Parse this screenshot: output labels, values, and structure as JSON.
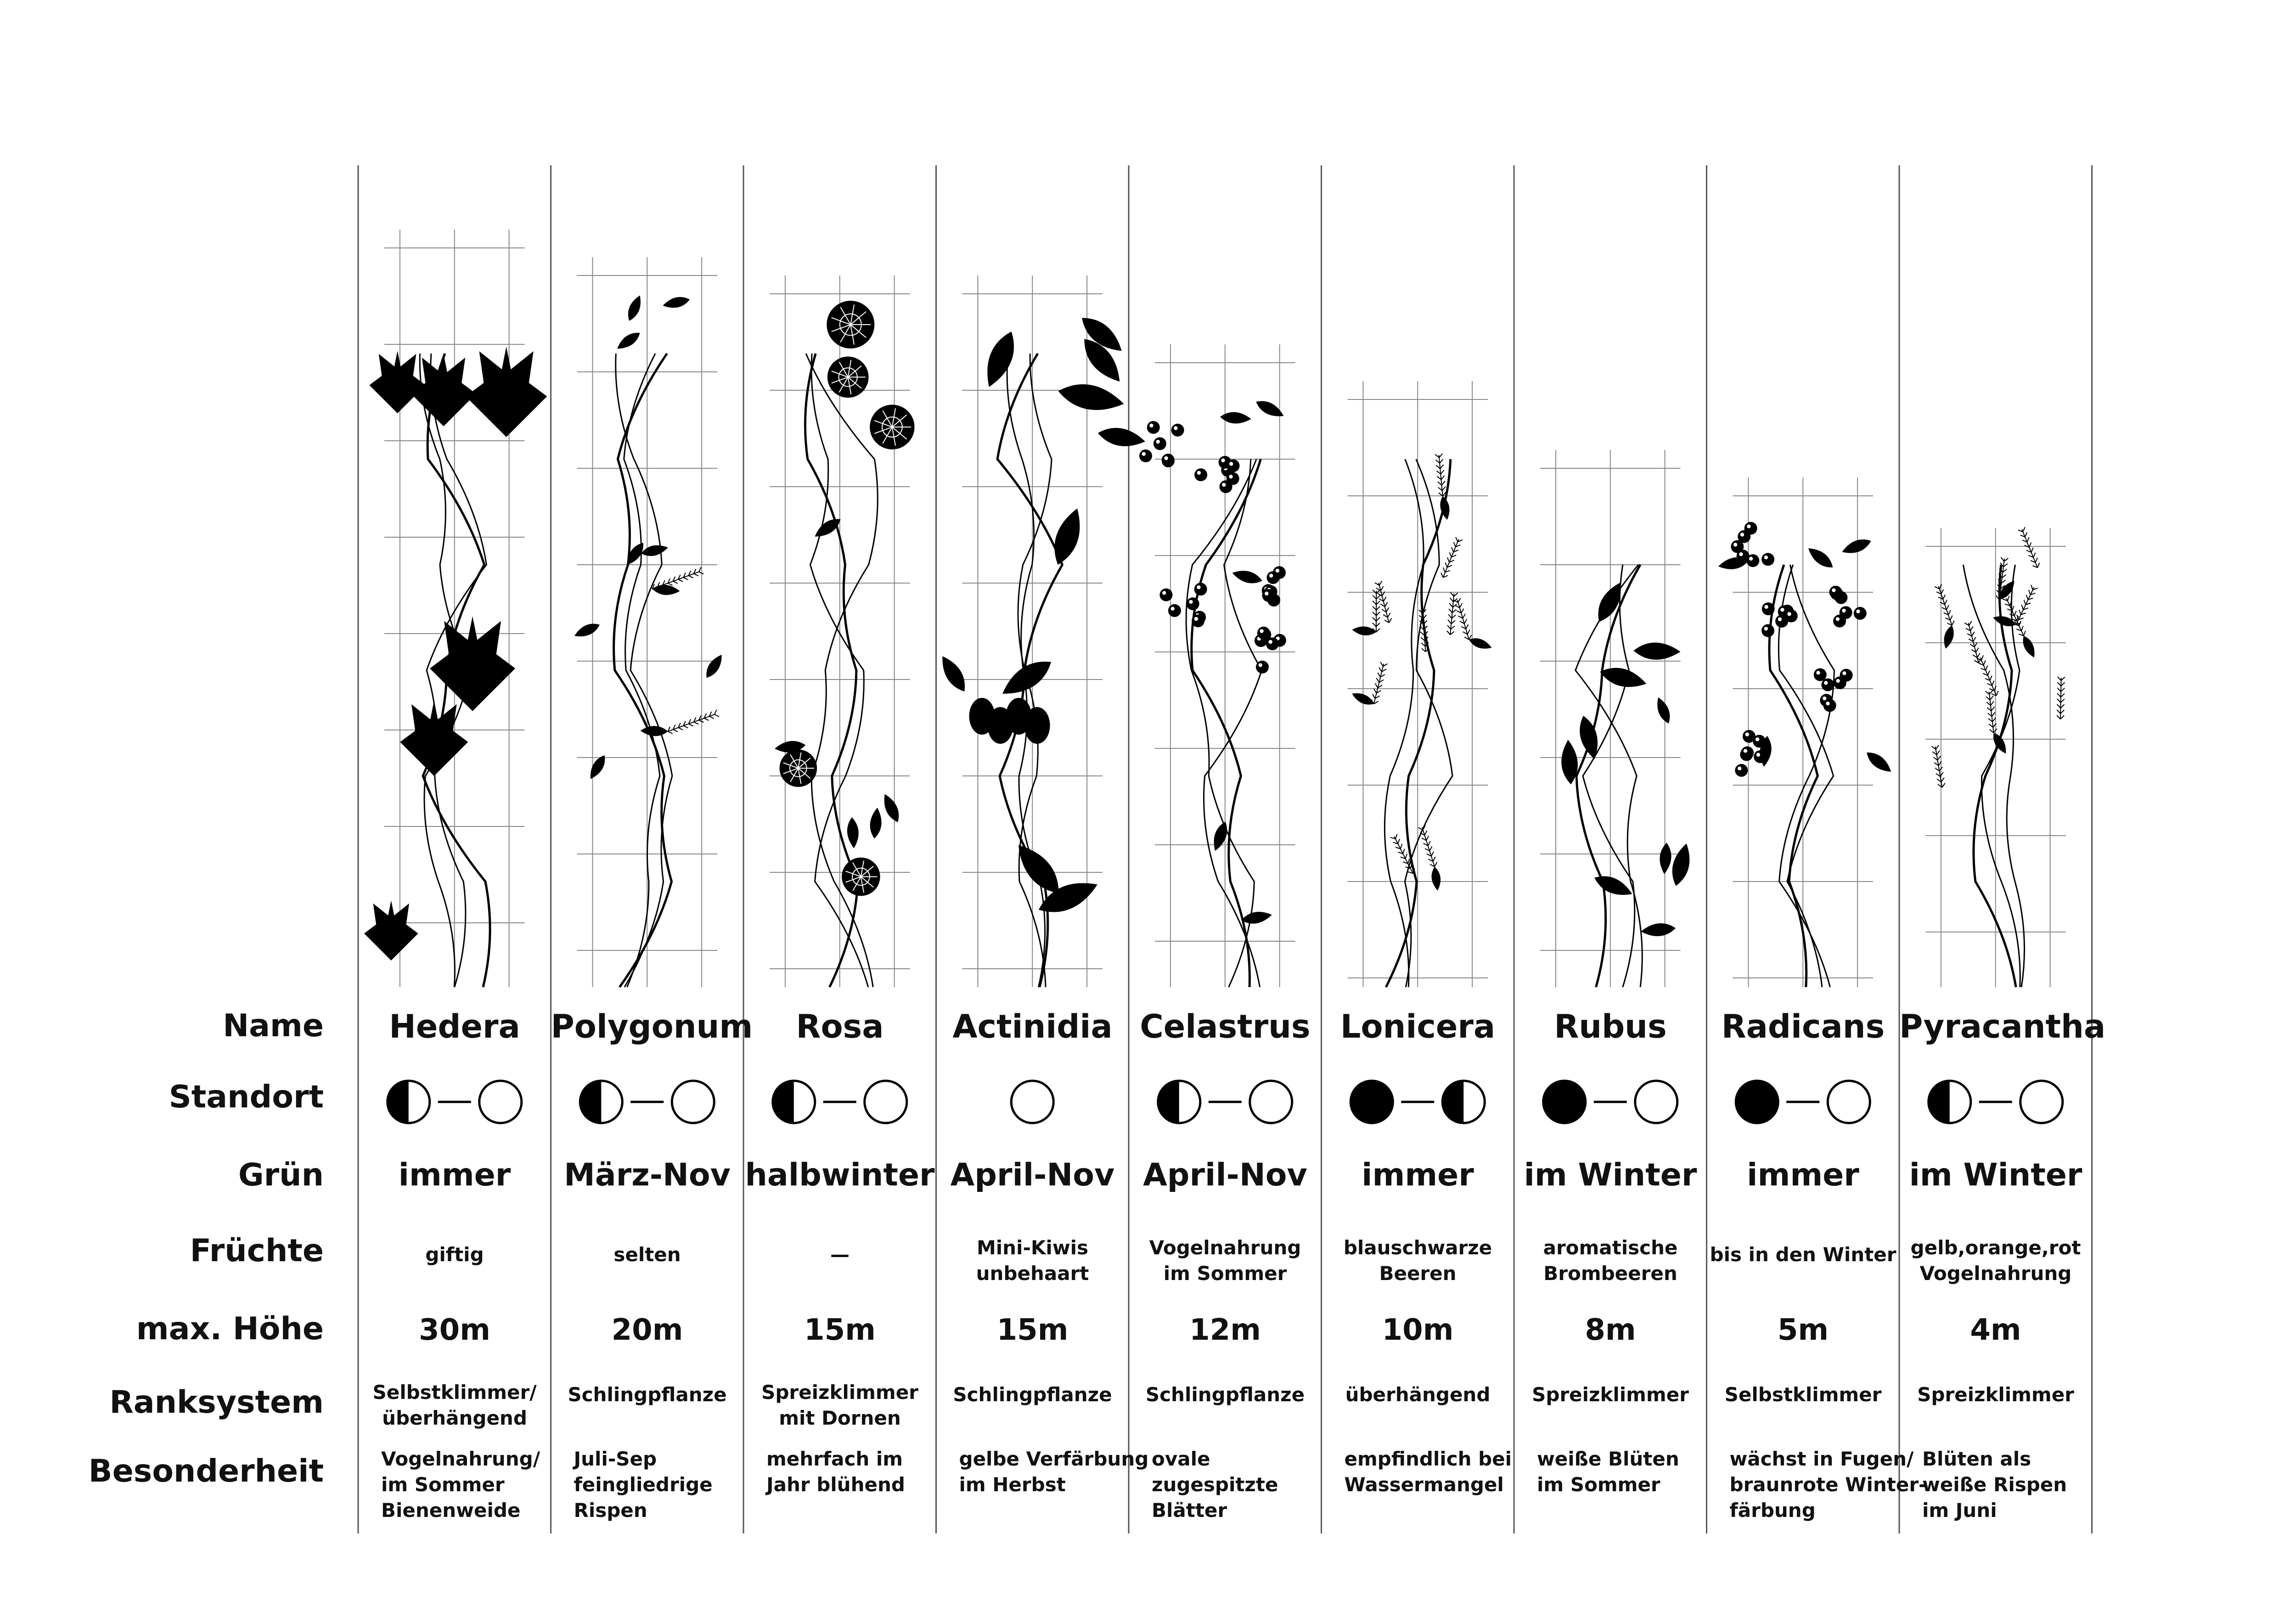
{
  "row_labels": {
    "name": "Name",
    "standort": "Standort",
    "gruen": "Grün",
    "fruechte": "Früchte",
    "hoehe": "max. Höhe",
    "ranksystem": "Ranksystem",
    "besonderheit": "Besonderheit"
  },
  "plants": [
    {
      "name": "Hedera",
      "standort": [
        "half",
        "empty"
      ],
      "gruen": "immer",
      "fruechte": [
        "giftig"
      ],
      "hoehe": "30m",
      "ranksystem": [
        "Selbstklimmer/",
        "überhängend"
      ],
      "besonderheit": [
        "Vogelnahrung/",
        "im Sommer",
        "Bienenweide"
      ],
      "illustration": "ivy"
    },
    {
      "name": "Polygonum",
      "standort": [
        "half",
        "empty"
      ],
      "gruen": "März-Nov",
      "fruechte": [
        "selten"
      ],
      "hoehe": "20m",
      "ranksystem": [
        "Schlingpflanze"
      ],
      "besonderheit": [
        "Juli-Sep",
        "feingliedrige",
        "Rispen"
      ],
      "illustration": "polygonum"
    },
    {
      "name": "Rosa",
      "standort": [
        "half",
        "empty"
      ],
      "gruen": "halbwinter",
      "fruechte": [
        "—"
      ],
      "hoehe": "15m",
      "ranksystem": [
        "Spreizklimmer",
        "mit Dornen"
      ],
      "besonderheit": [
        "mehrfach im",
        "Jahr blühend"
      ],
      "illustration": "rose"
    },
    {
      "name": "Actinidia",
      "standort": [
        "empty"
      ],
      "gruen": "April-Nov",
      "fruechte": [
        "Mini-Kiwis",
        "unbehaart"
      ],
      "hoehe": "15m",
      "ranksystem": [
        "Schlingpflanze"
      ],
      "besonderheit": [
        "gelbe Verfärbung",
        "im Herbst"
      ],
      "illustration": "kiwi"
    },
    {
      "name": "Celastrus",
      "standort": [
        "half",
        "empty"
      ],
      "gruen": "April-Nov",
      "fruechte": [
        "Vogelnahrung",
        "im Sommer"
      ],
      "hoehe": "12m",
      "ranksystem": [
        "Schlingpflanze"
      ],
      "besonderheit": [
        "ovale",
        "zugespitzte",
        "Blätter"
      ],
      "illustration": "celastrus"
    },
    {
      "name": "Lonicera",
      "standort": [
        "full",
        "half"
      ],
      "gruen": "immer",
      "fruechte": [
        "blauschwarze",
        "Beeren"
      ],
      "hoehe": "10m",
      "ranksystem": [
        "überhängend"
      ],
      "besonderheit": [
        "empfindlich bei",
        "Wassermangel"
      ],
      "illustration": "lonicera"
    },
    {
      "name": "Rubus",
      "standort": [
        "full",
        "empty"
      ],
      "gruen": "im Winter",
      "fruechte": [
        "aromatische",
        "Brombeeren"
      ],
      "hoehe": "8m",
      "ranksystem": [
        "Spreizklimmer"
      ],
      "besonderheit": [
        "weiße Blüten",
        "im Sommer"
      ],
      "illustration": "rubus"
    },
    {
      "name": "Radicans",
      "standort": [
        "full",
        "empty"
      ],
      "gruen": "immer",
      "fruechte": [
        "bis in den Winter"
      ],
      "hoehe": "5m",
      "ranksystem": [
        "Selbstklimmer"
      ],
      "besonderheit": [
        "wächst in Fugen/",
        "braunrote Winter-",
        "färbung"
      ],
      "illustration": "radicans"
    },
    {
      "name": "Pyracantha",
      "standort": [
        "half",
        "empty"
      ],
      "gruen": "im Winter",
      "fruechte": [
        "gelb,orange,rot",
        "Vogelnahrung"
      ],
      "hoehe": "4m",
      "ranksystem": [
        "Spreizklimmer"
      ],
      "besonderheit": [
        "Blüten als",
        "weiße Rispen",
        "im Juni"
      ],
      "illustration": "pyracantha"
    }
  ]
}
